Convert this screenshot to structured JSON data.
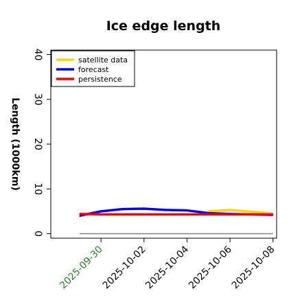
{
  "chart_data": {
    "type": "line",
    "title": "Ice edge length",
    "xlabel": "",
    "ylabel": "Length (1000km)",
    "ylim": [
      -1,
      41
    ],
    "xlim": [
      "2025-09-27 16:00",
      "2025-10-08 04:00"
    ],
    "yticks": [
      0,
      10,
      20,
      30,
      40
    ],
    "xticks": [
      {
        "label": "2025-09-30",
        "date": "2025-09-30",
        "color": "#228b22"
      },
      {
        "label": "2025-10-02",
        "date": "2025-10-02",
        "color": "#000000"
      },
      {
        "label": "2025-10-04",
        "date": "2025-10-04",
        "color": "#000000"
      },
      {
        "label": "2025-10-06",
        "date": "2025-10-06",
        "color": "#000000"
      },
      {
        "label": "2025-10-08",
        "date": "2025-10-08",
        "color": "#000000"
      }
    ],
    "legend_placement": "top-left",
    "grid": false,
    "series": [
      {
        "name": "satellite data",
        "color": "#ffd700",
        "points": [
          [
            "2025-10-05",
            5.0
          ],
          [
            "2025-10-06",
            5.3
          ],
          [
            "2025-10-07",
            4.9
          ],
          [
            "2025-10-08",
            4.5
          ]
        ]
      },
      {
        "name": "forecast",
        "color": "#0000ff",
        "points": [
          [
            "2025-09-29",
            4.0
          ],
          [
            "2025-09-30",
            5.0
          ],
          [
            "2025-10-01",
            5.5
          ],
          [
            "2025-10-02",
            5.6
          ],
          [
            "2025-10-03",
            5.3
          ],
          [
            "2025-10-04",
            5.2
          ],
          [
            "2025-10-05",
            4.6
          ],
          [
            "2025-10-06",
            4.4
          ],
          [
            "2025-10-07",
            4.3
          ],
          [
            "2025-10-08",
            4.2
          ]
        ]
      },
      {
        "name": "persistence",
        "color": "#ff0000",
        "points": [
          [
            "2025-09-29",
            4.4
          ],
          [
            "2025-09-30",
            4.3
          ],
          [
            "2025-10-01",
            4.3
          ],
          [
            "2025-10-02",
            4.3
          ],
          [
            "2025-10-03",
            4.3
          ],
          [
            "2025-10-04",
            4.3
          ],
          [
            "2025-10-05",
            4.3
          ],
          [
            "2025-10-06",
            4.3
          ],
          [
            "2025-10-07",
            4.3
          ],
          [
            "2025-10-08",
            4.3
          ]
        ]
      }
    ],
    "reference_lines": [
      {
        "color": "#808080",
        "points": [
          [
            "2025-09-29",
            0
          ],
          [
            "2025-10-08",
            0
          ]
        ]
      }
    ]
  }
}
